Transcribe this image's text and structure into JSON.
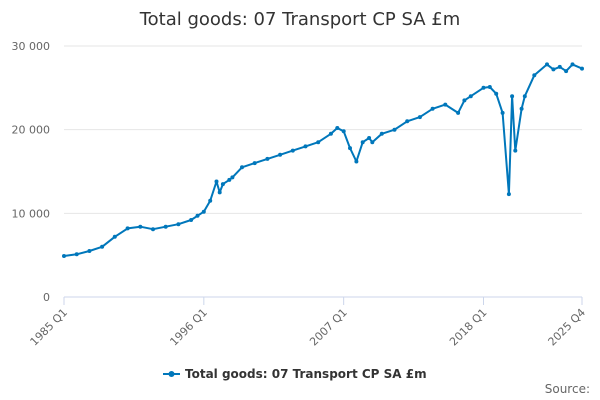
{
  "chart_data": {
    "type": "line",
    "title": "Total goods: 07 Transport CP SA £m",
    "xlabel": "",
    "ylabel": "",
    "ylim": [
      0,
      30000
    ],
    "y_ticks": [
      {
        "value": 0,
        "label": "0"
      },
      {
        "value": 10000,
        "label": "10 000"
      },
      {
        "value": 20000,
        "label": "20 000"
      },
      {
        "value": 30000,
        "label": "30 000"
      }
    ],
    "x_ticks": [
      "1985 Q1",
      "1996 Q1",
      "2007 Q1",
      "2018 Q1",
      "2025 Q4"
    ],
    "x_range": [
      "1985 Q1",
      "2025 Q4"
    ],
    "series": [
      {
        "name": "Total goods: 07 Transport CP SA £m",
        "color": "#0077bb",
        "x": [
          "1985 Q1",
          "1986 Q1",
          "1987 Q1",
          "1988 Q1",
          "1989 Q1",
          "1990 Q1",
          "1991 Q1",
          "1992 Q1",
          "1993 Q1",
          "1994 Q1",
          "1995 Q1",
          "1995 Q3",
          "1996 Q1",
          "1996 Q3",
          "1997 Q1",
          "1997 Q2",
          "1997 Q3",
          "1998 Q1",
          "1998 Q2",
          "1999 Q1",
          "2000 Q1",
          "2001 Q1",
          "2002 Q1",
          "2003 Q1",
          "2004 Q1",
          "2005 Q1",
          "2006 Q1",
          "2006 Q3",
          "2007 Q1",
          "2007 Q3",
          "2008 Q1",
          "2008 Q3",
          "2009 Q1",
          "2009 Q2",
          "2010 Q1",
          "2011 Q1",
          "2012 Q1",
          "2013 Q1",
          "2014 Q1",
          "2015 Q1",
          "2016 Q1",
          "2016 Q3",
          "2017 Q1",
          "2018 Q1",
          "2018 Q3",
          "2019 Q1",
          "2019 Q3",
          "2020 Q1",
          "2020 Q2",
          "2020 Q3",
          "2021 Q1",
          "2021 Q2",
          "2022 Q1",
          "2023 Q1",
          "2023 Q3",
          "2024 Q1",
          "2024 Q3",
          "2025 Q1",
          "2025 Q4"
        ],
        "values": [
          4900,
          5100,
          5500,
          6000,
          7200,
          8200,
          8400,
          8100,
          8400,
          8700,
          9200,
          9700,
          10200,
          11500,
          13800,
          12500,
          13500,
          14000,
          14300,
          15500,
          16000,
          16500,
          17000,
          17500,
          18000,
          18500,
          19500,
          20200,
          19800,
          17800,
          16200,
          18500,
          19000,
          18500,
          19500,
          20000,
          21000,
          21500,
          22500,
          23000,
          22000,
          23500,
          24000,
          25000,
          25100,
          24300,
          22000,
          12300,
          24000,
          17500,
          22500,
          24000,
          26500,
          27800,
          27200,
          27500,
          27000,
          27800,
          27300
        ]
      }
    ]
  },
  "legend": {
    "label": "Total goods: 07 Transport CP SA £m",
    "position": "bottom-center"
  },
  "source_label": "Source:"
}
